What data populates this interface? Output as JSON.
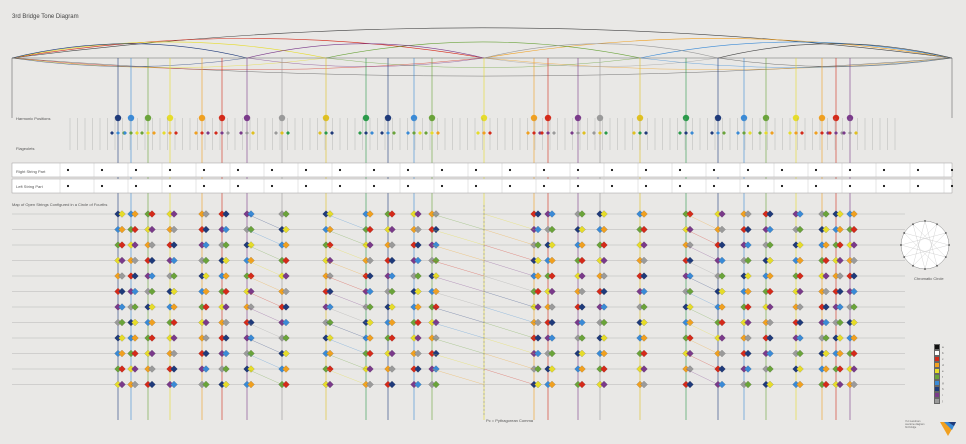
{
  "title": "3rd Bridge Tone Diagram",
  "labels": {
    "harmonic_positions": "Harmonic Positions",
    "flageolets": "Flageolets",
    "right_string_part": "Right String Part",
    "left_string_part": "Left String Part",
    "open_strings_caption": "Map of Open Strings Configured in a Circle of Fourths",
    "pythagorean_comma": "Pc = Pythagorean Comma",
    "chromatic_circle": "Chromatic Circle"
  },
  "colors": {
    "bg": "#e9e8e6",
    "line": "#9a9a9a",
    "palette": [
      "#1f3a7a",
      "#3a8ad6",
      "#6aa33a",
      "#e6dc2a",
      "#f0a020",
      "#d42a1a",
      "#7a3a8a",
      "#9a9a9a",
      "#e0c020",
      "#2a9a4a"
    ]
  },
  "legend": [
    {
      "label": "a",
      "color": "#111111"
    },
    {
      "label": "b",
      "color": "#ffffff"
    },
    {
      "label": "c",
      "color": "#d42a1a"
    },
    {
      "label": "d",
      "color": "#f0a020"
    },
    {
      "label": "e",
      "color": "#e6dc2a"
    },
    {
      "label": "f",
      "color": "#6aa33a"
    },
    {
      "label": "g",
      "color": "#3a8ad6"
    },
    {
      "label": "h",
      "color": "#1f3a7a"
    },
    {
      "label": "i",
      "color": "#7a3a8a"
    },
    {
      "label": "j",
      "color": "#9a9a9a"
    }
  ],
  "credits": [
    "Yuri Landman",
    "overtone diagram",
    "3rd bridge"
  ]
}
